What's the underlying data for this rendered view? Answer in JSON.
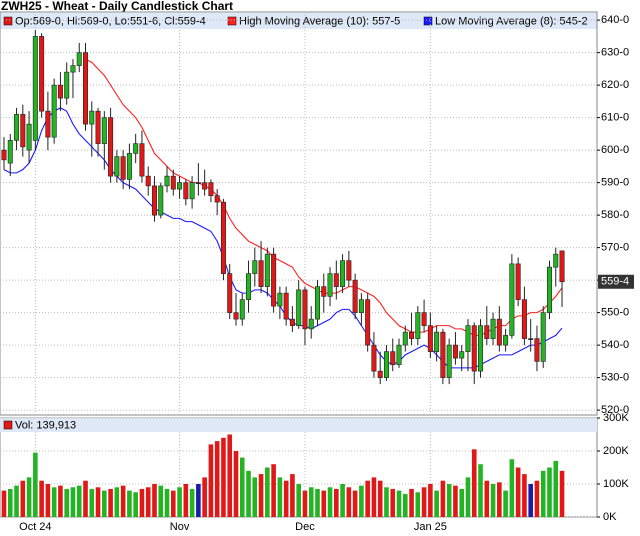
{
  "chart_data": {
    "type": "candlestick",
    "title": "ZWH25 - Wheat - Daily Candlestick Chart",
    "ohlc_legend": "Op:569-0, Hi:569-0, Lo:551-6, Cl:559-4",
    "categories": [
      null,
      null,
      null,
      null,
      null,
      "Oct 24",
      null,
      null,
      null,
      null,
      null,
      null,
      null,
      null,
      null,
      null,
      null,
      null,
      null,
      null,
      null,
      null,
      null,
      null,
      null,
      null,
      null,
      null,
      "Nov",
      null,
      null,
      null,
      null,
      null,
      null,
      null,
      null,
      null,
      null,
      null,
      null,
      null,
      null,
      null,
      null,
      null,
      null,
      null,
      "Dec",
      null,
      null,
      null,
      null,
      null,
      null,
      null,
      null,
      null,
      null,
      null,
      null,
      null,
      null,
      null,
      null,
      null,
      null,
      null,
      "Jan 25",
      null,
      null,
      null,
      null,
      null,
      null,
      null,
      null,
      null,
      null,
      null,
      null,
      null,
      null,
      null,
      null,
      null,
      null,
      null,
      null,
      null
    ],
    "open": [
      600,
      596,
      603,
      611,
      600,
      603,
      635,
      612,
      604,
      620,
      616,
      624,
      626,
      630,
      608,
      612,
      602,
      610,
      592,
      598,
      591,
      599,
      602,
      592,
      589,
      580,
      589,
      592,
      588,
      590,
      585,
      590,
      590,
      590,
      586,
      584,
      562,
      550,
      548,
      554,
      562,
      566,
      558,
      568,
      552,
      556,
      548,
      546,
      557,
      545,
      548,
      558,
      555,
      562,
      558,
      566,
      560,
      550,
      554,
      540,
      532,
      530,
      538,
      534,
      540,
      544,
      542,
      550,
      546,
      538,
      544,
      530,
      540,
      536,
      538,
      546,
      532,
      546,
      542,
      548,
      540,
      543,
      565,
      554,
      542,
      542,
      535,
      550,
      564,
      569
    ],
    "high": [
      604,
      605,
      613,
      614,
      612,
      637,
      636,
      618,
      622,
      624,
      627,
      628,
      633,
      633,
      615,
      613,
      612,
      613,
      600,
      600,
      602,
      605,
      606,
      595,
      592,
      590,
      595,
      594,
      592,
      591,
      592,
      596,
      594,
      591,
      588,
      585,
      565,
      556,
      556,
      566,
      570,
      572,
      570,
      570,
      558,
      558,
      552,
      560,
      558,
      552,
      560,
      562,
      564,
      566,
      568,
      569,
      562,
      556,
      556,
      544,
      538,
      540,
      542,
      542,
      546,
      550,
      552,
      554,
      550,
      546,
      545,
      542,
      544,
      540,
      548,
      547,
      548,
      552,
      550,
      552,
      545,
      568,
      567,
      558,
      548,
      546,
      552,
      566,
      570,
      569
    ],
    "low": [
      594,
      592,
      600,
      598,
      596,
      600,
      610,
      600,
      602,
      612,
      614,
      616,
      624,
      606,
      598,
      598,
      594,
      590,
      590,
      588,
      588,
      596,
      590,
      586,
      578,
      579,
      587,
      586,
      585,
      583,
      582,
      586,
      586,
      584,
      580,
      560,
      548,
      546,
      546,
      550,
      558,
      556,
      555,
      550,
      548,
      546,
      544,
      545,
      540,
      542,
      546,
      550,
      552,
      554,
      556,
      558,
      548,
      546,
      538,
      530,
      528,
      529,
      532,
      533,
      538,
      540,
      540,
      544,
      536,
      535,
      528,
      528,
      534,
      532,
      532,
      528,
      530,
      540,
      540,
      538,
      538,
      542,
      552,
      540,
      538,
      532,
      533,
      548,
      558,
      551.75
    ],
    "close": [
      597,
      603,
      611,
      601,
      608,
      635,
      612,
      604,
      620,
      616,
      624,
      626,
      630,
      608,
      612,
      602,
      610,
      592,
      598,
      591,
      599,
      602,
      592,
      589,
      580,
      589,
      592,
      588,
      590,
      585,
      590,
      590,
      588,
      586,
      584,
      562,
      550,
      548,
      554,
      562,
      566,
      558,
      568,
      552,
      556,
      548,
      546,
      557,
      545,
      548,
      558,
      555,
      562,
      558,
      566,
      560,
      550,
      554,
      540,
      532,
      530,
      538,
      534,
      540,
      544,
      542,
      550,
      546,
      538,
      544,
      530,
      540,
      536,
      538,
      546,
      532,
      546,
      542,
      548,
      540,
      543,
      565,
      554,
      542,
      542,
      535,
      550,
      564,
      568,
      559.5
    ],
    "up_color": "#22b422",
    "down_color": "#e01818",
    "flat_color": "#1c1ca8",
    "series": [
      {
        "name": "High Moving Average (10): 557-5",
        "color": "#ff2020",
        "values": [
          null,
          null,
          null,
          null,
          null,
          null,
          null,
          null,
          null,
          null,
          null,
          null,
          null,
          628,
          627,
          625,
          623,
          620,
          617,
          614,
          612,
          610,
          607,
          603,
          599,
          597,
          595,
          593,
          592,
          591,
          590,
          590,
          589,
          588,
          586,
          583,
          579,
          576,
          574,
          572,
          571,
          570,
          569,
          567,
          566,
          565,
          564,
          561,
          559,
          558,
          557,
          556,
          556,
          556,
          557,
          558,
          558,
          557,
          556,
          555,
          553,
          550,
          548,
          546,
          545,
          544,
          544,
          544,
          545,
          546,
          546,
          546,
          545,
          545,
          544,
          543,
          543,
          544,
          545,
          546,
          546,
          548,
          549,
          549,
          550,
          550,
          551,
          553,
          555,
          557.625
        ]
      },
      {
        "name": "Low Moving Average (8): 545-2",
        "color": "#1a1aff",
        "values": [
          594,
          593,
          593,
          594,
          596,
          600,
          606,
          610,
          612,
          613,
          612,
          608,
          605,
          603,
          601,
          599,
          597,
          594,
          592,
          590,
          589,
          588,
          586,
          584,
          582,
          581,
          580,
          579,
          579,
          578,
          578,
          577,
          576,
          575,
          572,
          567,
          561,
          557,
          556,
          556,
          557,
          557,
          556,
          554,
          552,
          549,
          547,
          546,
          546,
          545,
          546,
          547,
          548,
          550,
          551,
          551,
          549,
          546,
          543,
          540,
          537,
          535,
          534,
          535,
          537,
          538,
          539,
          540,
          539,
          537,
          535,
          533,
          533,
          533,
          533,
          533,
          534,
          535,
          536,
          537,
          537,
          537,
          538,
          539,
          540,
          540,
          541,
          542,
          543,
          545.25
        ]
      }
    ],
    "ylim": [
      518.5,
      642.5
    ],
    "yticks": [
      {
        "value": 520,
        "label": "520-0"
      },
      {
        "value": 530,
        "label": "530-0"
      },
      {
        "value": 540,
        "label": "540-0"
      },
      {
        "value": 550,
        "label": "550-0"
      },
      {
        "value": 560,
        "label": "560-0"
      },
      {
        "value": 570,
        "label": "570-0"
      },
      {
        "value": 580,
        "label": "580-0"
      },
      {
        "value": 590,
        "label": "590-0"
      },
      {
        "value": 600,
        "label": "600-0"
      },
      {
        "value": 610,
        "label": "610-0"
      },
      {
        "value": 620,
        "label": "620-0"
      },
      {
        "value": 630,
        "label": "630-0"
      },
      {
        "value": 640,
        "label": "640-0"
      }
    ],
    "last": {
      "value": 559.5,
      "label": "559-4"
    },
    "grid": true,
    "volume": {
      "type": "bar",
      "legend": "Vol: 139,913",
      "values": [
        80000,
        85000,
        95000,
        110000,
        120000,
        195000,
        110000,
        100000,
        90000,
        95000,
        85000,
        90000,
        95000,
        110000,
        85000,
        90000,
        80000,
        85000,
        90000,
        95000,
        80000,
        75000,
        85000,
        90000,
        100000,
        95000,
        85000,
        80000,
        90000,
        100000,
        85000,
        100000,
        120000,
        220000,
        230000,
        240000,
        250000,
        200000,
        180000,
        140000,
        120000,
        130000,
        150000,
        160000,
        120000,
        110000,
        130000,
        100000,
        80000,
        90000,
        85000,
        80000,
        90000,
        85000,
        100000,
        90000,
        80000,
        95000,
        110000,
        120000,
        110000,
        90000,
        85000,
        80000,
        70000,
        85000,
        75000,
        90000,
        100000,
        80000,
        110000,
        100000,
        95000,
        85000,
        120000,
        205000,
        160000,
        110000,
        100000,
        105000,
        80000,
        175000,
        150000,
        130000,
        100000,
        110000,
        140000,
        150000,
        170000,
        139913
      ],
      "ylim": [
        0,
        300000
      ],
      "yticks": [
        {
          "value": 0,
          "label": "0K"
        },
        {
          "value": 100000,
          "label": "100K"
        },
        {
          "value": 200000,
          "label": "200K"
        },
        {
          "value": 300000,
          "label": "300K"
        }
      ]
    }
  }
}
